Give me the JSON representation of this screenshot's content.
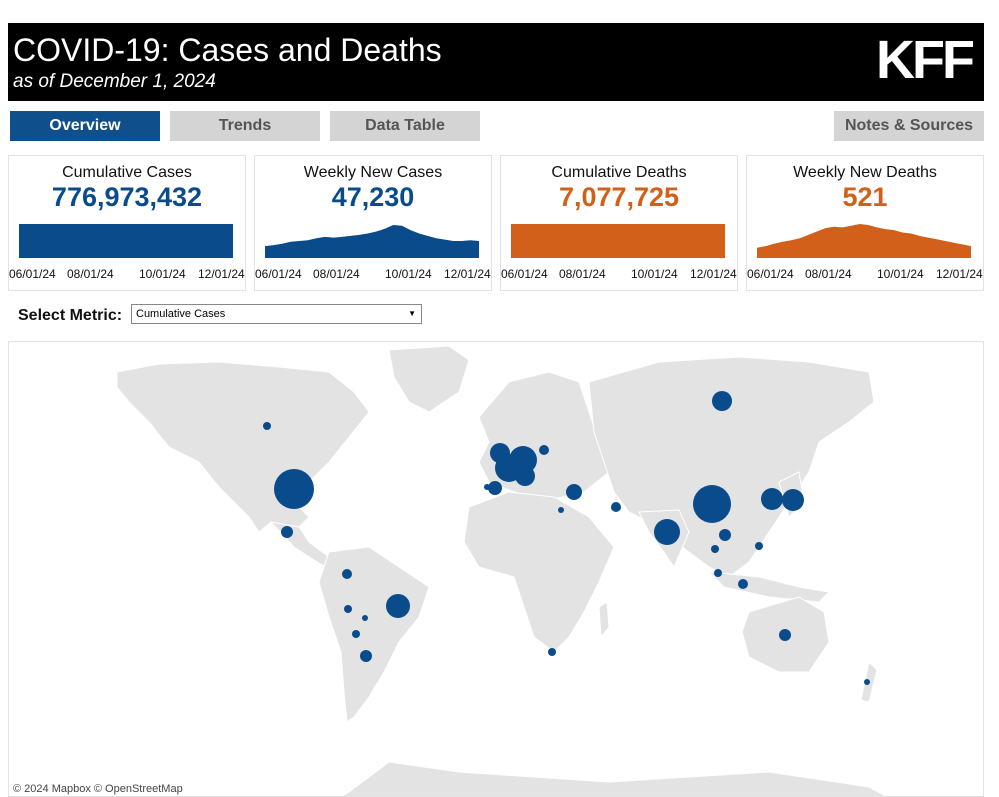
{
  "header": {
    "title": "COVID-19: Cases and Deaths",
    "subtitle": "as of December 1, 2024",
    "logo": "KFF"
  },
  "tabs": [
    {
      "label": "Overview",
      "active": true
    },
    {
      "label": "Trends",
      "active": false
    },
    {
      "label": "Data Table",
      "active": false
    },
    {
      "label": "Notes & Sources",
      "active": false
    }
  ],
  "colors": {
    "cases": "#0a4c8b",
    "deaths": "#d2601a",
    "active_tab": "#0f4f8c",
    "land": "#e3e3e3"
  },
  "cards": [
    {
      "label": "Cumulative Cases",
      "value": "776,973,432",
      "color": "#0a4c8b",
      "ticks": [
        "06/01/24",
        "08/01/24",
        "10/01/24",
        "12/01/24"
      ],
      "trend": [
        1,
        1,
        1,
        1,
        1,
        1,
        1,
        1,
        1,
        1,
        1,
        1,
        1,
        1,
        1,
        1,
        1,
        1,
        1,
        1,
        1,
        1,
        1,
        1,
        1,
        1
      ]
    },
    {
      "label": "Weekly New Cases",
      "value": "47,230",
      "color": "#0a4c8b",
      "ticks": [
        "06/01/24",
        "08/01/24",
        "10/01/24",
        "12/01/24"
      ],
      "trend": [
        0.35,
        0.38,
        0.42,
        0.48,
        0.5,
        0.52,
        0.58,
        0.62,
        0.6,
        0.62,
        0.65,
        0.68,
        0.72,
        0.78,
        0.86,
        0.97,
        0.95,
        0.82,
        0.72,
        0.65,
        0.58,
        0.54,
        0.5,
        0.5,
        0.52,
        0.5
      ]
    },
    {
      "label": "Cumulative Deaths",
      "value": "7,077,725",
      "color": "#d2601a",
      "ticks": [
        "06/01/24",
        "08/01/24",
        "10/01/24",
        "12/01/24"
      ],
      "trend": [
        1,
        1,
        1,
        1,
        1,
        1,
        1,
        1,
        1,
        1,
        1,
        1,
        1,
        1,
        1,
        1,
        1,
        1,
        1,
        1,
        1,
        1,
        1,
        1,
        1,
        1
      ]
    },
    {
      "label": "Weekly New Deaths",
      "value": "521",
      "color": "#d2601a",
      "ticks": [
        "06/01/24",
        "08/01/24",
        "10/01/24",
        "12/01/24"
      ],
      "trend": [
        0.3,
        0.35,
        0.42,
        0.48,
        0.52,
        0.58,
        0.68,
        0.78,
        0.88,
        0.92,
        0.9,
        0.95,
        1.0,
        0.97,
        0.9,
        0.85,
        0.82,
        0.75,
        0.72,
        0.65,
        0.6,
        0.55,
        0.5,
        0.45,
        0.4,
        0.35
      ]
    }
  ],
  "metric": {
    "label": "Select Metric:",
    "selected": "Cumulative Cases"
  },
  "map": {
    "attribution": "© 2024 Mapbox  © OpenStreetMap",
    "bubbles": [
      {
        "name": "United States",
        "size": 1.0
      },
      {
        "name": "India",
        "size": 0.95
      },
      {
        "name": "France",
        "size": 0.8
      },
      {
        "name": "Germany",
        "size": 0.82
      },
      {
        "name": "Brazil",
        "size": 0.67
      },
      {
        "name": "South Korea",
        "size": 0.6
      },
      {
        "name": "Japan",
        "size": 0.6
      },
      {
        "name": "Italy",
        "size": 0.6
      },
      {
        "name": "United Kingdom",
        "size": 0.6
      },
      {
        "name": "Russia",
        "size": 0.5
      },
      {
        "name": "Turkey",
        "size": 0.42
      },
      {
        "name": "Spain",
        "size": 0.35
      },
      {
        "name": "Vietnam",
        "size": 0.34
      },
      {
        "name": "Australia",
        "size": 0.3
      },
      {
        "name": "Argentina",
        "size": 0.28
      }
    ]
  }
}
